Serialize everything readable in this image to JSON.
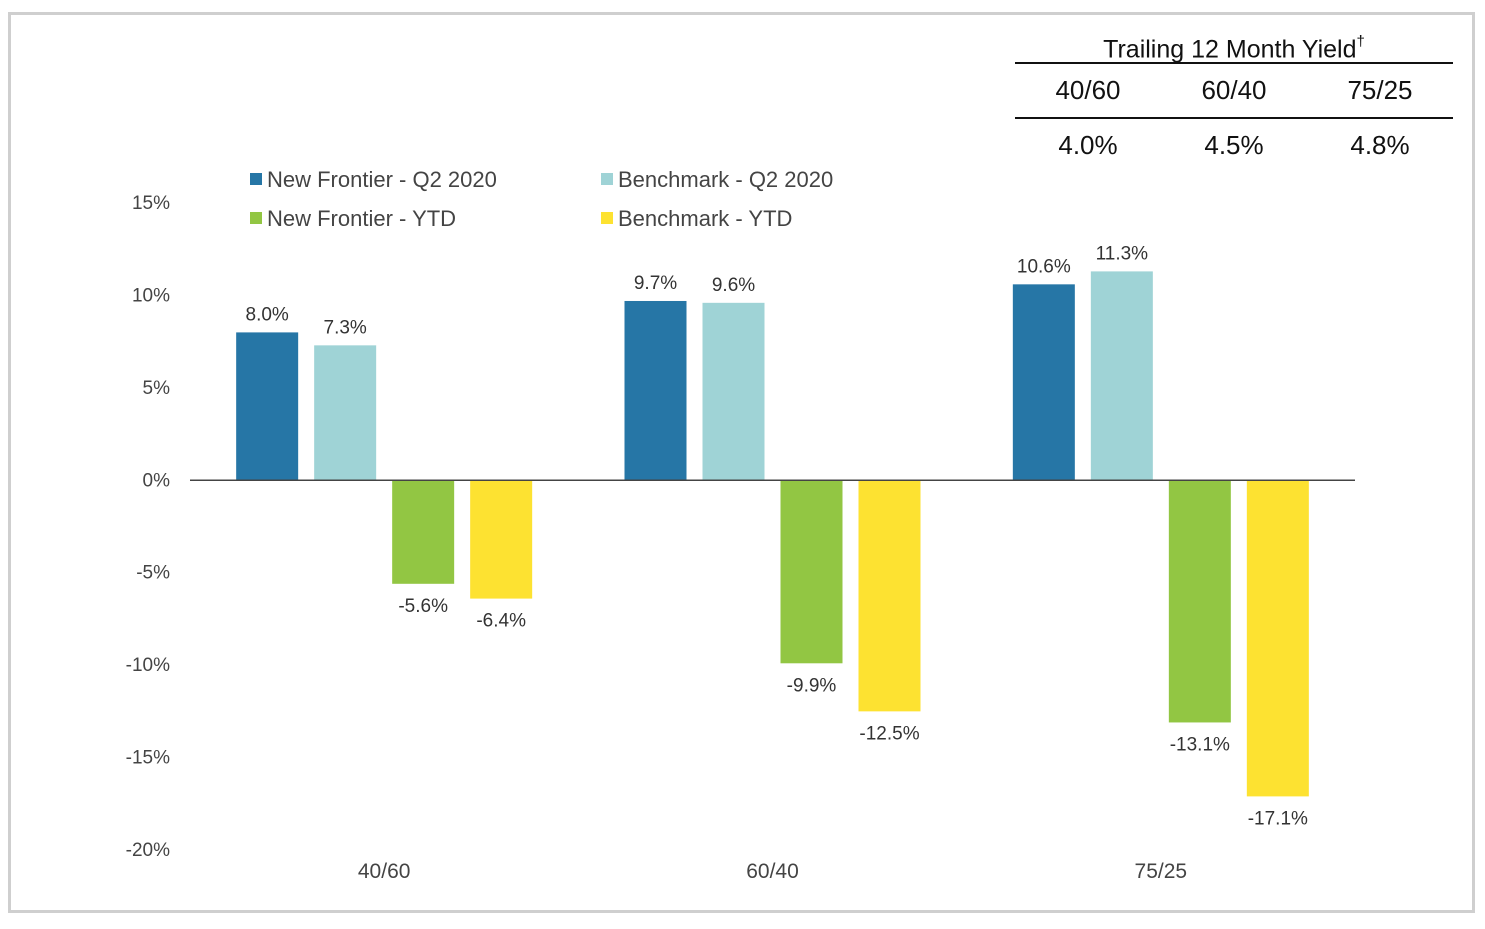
{
  "chart_data": {
    "type": "bar",
    "categories": [
      "40/60",
      "60/40",
      "75/25"
    ],
    "series": [
      {
        "name": "New Frontier - Q2 2020",
        "color": "#2676a6",
        "values": [
          8.0,
          9.7,
          10.6
        ],
        "labels": [
          "8.0%",
          "9.7%",
          "10.6%"
        ]
      },
      {
        "name": "Benchmark - Q2 2020",
        "color": "#9fd3d6",
        "values": [
          7.3,
          9.6,
          11.3
        ],
        "labels": [
          "7.3%",
          "9.6%",
          "11.3%"
        ]
      },
      {
        "name": "New Frontier - YTD",
        "color": "#92c643",
        "values": [
          -5.6,
          -9.9,
          -13.1
        ],
        "labels": [
          "-5.6%",
          "-9.9%",
          "-13.1%"
        ]
      },
      {
        "name": "Benchmark - YTD",
        "color": "#fde231",
        "values": [
          -6.4,
          -12.5,
          -17.1
        ],
        "labels": [
          "-6.4%",
          "-12.5%",
          "-17.1%"
        ]
      }
    ],
    "ylim": [
      -20,
      15
    ],
    "yticks": [
      15,
      10,
      5,
      0,
      -5,
      -10,
      -15,
      -20
    ],
    "ytick_labels": [
      "15%",
      "10%",
      "5%",
      "0%",
      "-5%",
      "-10%",
      "-15%",
      "-20%"
    ],
    "legend_position": "top-left",
    "grid": false
  },
  "yield_table": {
    "title": "Trailing 12 Month Yield",
    "title_mark": "†",
    "headers": [
      "40/60",
      "60/40",
      "75/25"
    ],
    "values": [
      "4.0%",
      "4.5%",
      "4.8%"
    ]
  }
}
